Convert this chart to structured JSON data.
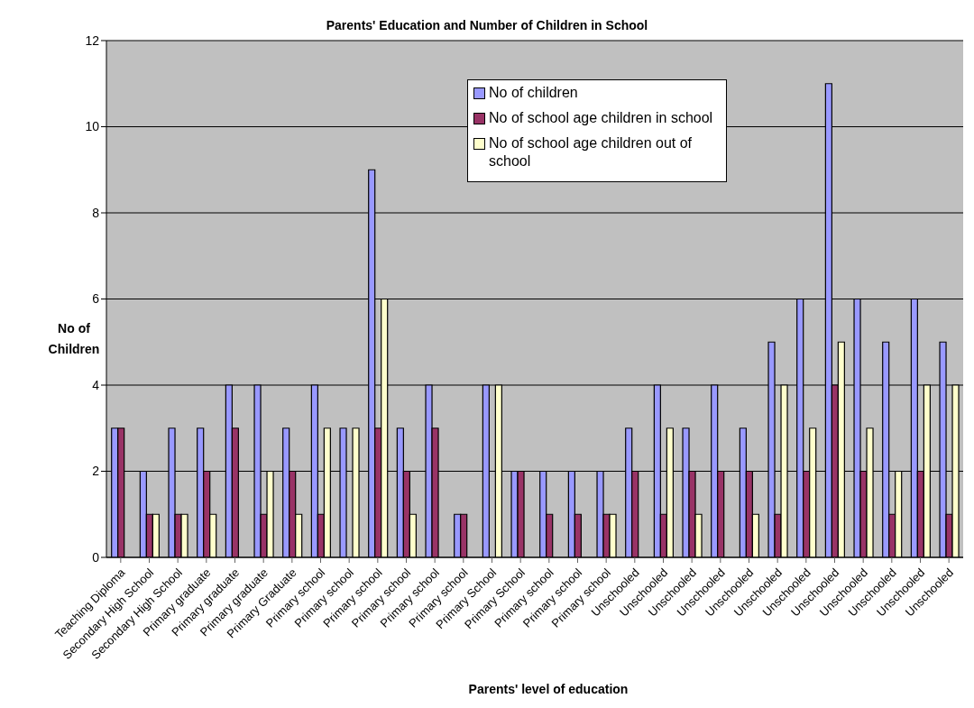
{
  "chart_data": {
    "type": "bar",
    "title": "Parents' Education and Number of Children in School",
    "xlabel": "Parents' level of education",
    "ylabel": "No of Children",
    "categories": [
      "Teaching Diploma",
      "Secondary High School",
      "Secondary High School",
      "Primary graduate",
      "Primary graduate",
      "Primary graduate",
      "Primary Graduate",
      "Primary school",
      "Primary school",
      "Primary school",
      "Primary school",
      "Primary school",
      "Primary school",
      "Primary School",
      "Primary School",
      "Primary school",
      "Primary school",
      "Primary school",
      "Unschooled",
      "Unschooled",
      "Unschooled",
      "Unschooled",
      "Unschooled",
      "Unschooled",
      "Unschooled",
      "Unschooled",
      "Unschooled",
      "Unschooled",
      "Unschooled",
      "Unschooled"
    ],
    "series": [
      {
        "name": "No of children",
        "color": "#9999ff",
        "values": [
          3,
          2,
          3,
          3,
          4,
          4,
          3,
          4,
          3,
          9,
          3,
          4,
          1,
          4,
          2,
          2,
          2,
          2,
          3,
          4,
          3,
          4,
          3,
          5,
          6,
          11,
          6,
          5,
          6,
          5
        ]
      },
      {
        "name": "No of school age children in school",
        "color": "#993366",
        "values": [
          3,
          1,
          1,
          2,
          3,
          1,
          2,
          1,
          0,
          3,
          2,
          3,
          1,
          0,
          2,
          1,
          1,
          1,
          2,
          1,
          2,
          2,
          2,
          1,
          2,
          4,
          2,
          1,
          2,
          1
        ]
      },
      {
        "name": "No of school age children out of school",
        "color": "#ffffcc",
        "values": [
          0,
          1,
          1,
          1,
          0,
          2,
          1,
          3,
          3,
          6,
          1,
          0,
          0,
          4,
          0,
          0,
          0,
          1,
          0,
          3,
          1,
          0,
          1,
          4,
          3,
          5,
          3,
          2,
          4,
          4
        ]
      }
    ],
    "ylim": [
      0,
      12
    ],
    "yticks": [
      0,
      2,
      4,
      6,
      8,
      10,
      12
    ],
    "grid": "y",
    "legend": "top"
  }
}
